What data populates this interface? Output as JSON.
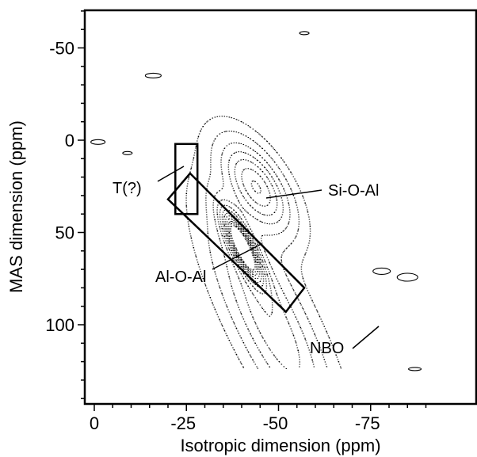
{
  "chart_data": {
    "type": "contour",
    "xlabel": "Isotropic dimension (ppm)",
    "ylabel": "MAS dimension (ppm)",
    "x_axis_reversed": true,
    "y_axis_reversed": true,
    "xlim": [
      2,
      -92
    ],
    "ylim": [
      -72,
      143
    ],
    "x_ticks": [
      {
        "value": 0,
        "label": "0"
      },
      {
        "value": -25,
        "label": "-25"
      },
      {
        "value": -50,
        "label": "-50"
      },
      {
        "value": -75,
        "label": "-75"
      }
    ],
    "y_ticks": [
      {
        "value": -50,
        "label": "-50"
      },
      {
        "value": 0,
        "label": "0"
      },
      {
        "value": 50,
        "label": "50"
      },
      {
        "value": 100,
        "label": "100"
      }
    ],
    "grid": false,
    "annotations": [
      {
        "text": "T(?)",
        "x": -26,
        "y": 13
      },
      {
        "text": "Si-O-Al",
        "x": -44,
        "y": 28
      },
      {
        "text": "Al-O-Al",
        "x": -40,
        "y": 59
      },
      {
        "text": "NBO",
        "x": -67,
        "y": 112
      }
    ],
    "boxes": [
      {
        "name": "T(?)",
        "corners": [
          [
            -22,
            2
          ],
          [
            -28,
            2
          ],
          [
            -28,
            40
          ],
          [
            -22,
            40
          ]
        ]
      },
      {
        "name": "Al-O-Al",
        "corners": [
          [
            -26,
            18
          ],
          [
            -57,
            80
          ],
          [
            -52,
            93
          ],
          [
            -20,
            32
          ]
        ]
      }
    ],
    "peaks": [
      {
        "name": "Al-O-Al",
        "center_x": -40,
        "center_y": 57
      },
      {
        "name": "Si-O-Al",
        "center_x": -44,
        "center_y": 25
      }
    ],
    "contour_levels": 12
  }
}
